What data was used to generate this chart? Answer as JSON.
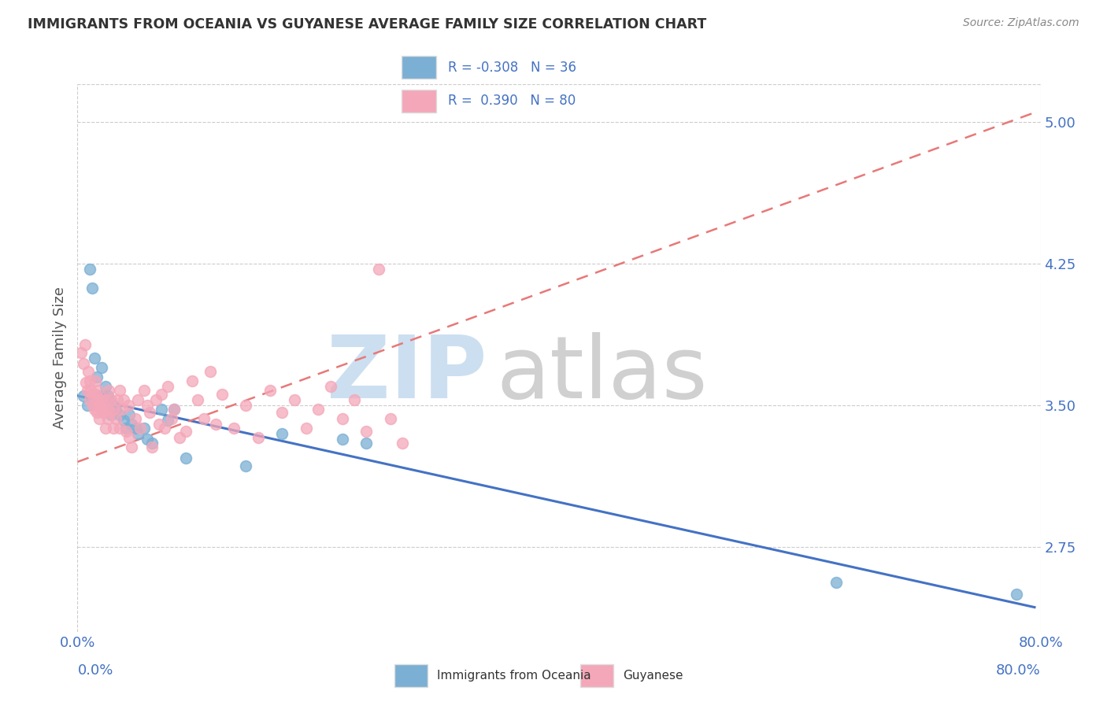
{
  "title": "IMMIGRANTS FROM OCEANIA VS GUYANESE AVERAGE FAMILY SIZE CORRELATION CHART",
  "source": "Source: ZipAtlas.com",
  "ylabel": "Average Family Size",
  "xmin": 0.0,
  "xmax": 0.8,
  "ymin": 2.3,
  "ymax": 5.2,
  "yticks": [
    2.75,
    3.5,
    4.25,
    5.0
  ],
  "xtick_positions": [
    0.0,
    0.1,
    0.2,
    0.3,
    0.4,
    0.5,
    0.6,
    0.7,
    0.8
  ],
  "background_color": "#ffffff",
  "grid_color": "#cccccc",
  "title_color": "#333333",
  "axis_tick_color": "#4472c4",
  "ylabel_color": "#555555",
  "watermark_zip_color": "#ccdff0",
  "watermark_atlas_color": "#d0d0d0",
  "series": [
    {
      "name": "Immigrants from Oceania",
      "R": -0.308,
      "N": 36,
      "color": "#7bafd4",
      "markersize": 10,
      "trendline_color": "#4472c4",
      "trendline_style": "-",
      "trend_x0": 0.0,
      "trend_x1": 0.795,
      "trend_y0": 3.55,
      "trend_y1": 2.43
    },
    {
      "name": "Guyanese",
      "R": 0.39,
      "N": 80,
      "color": "#f4a7b9",
      "markersize": 10,
      "trendline_color": "#e87878",
      "trendline_style": "--",
      "trend_x0": 0.0,
      "trend_x1": 0.795,
      "trend_y0": 3.2,
      "trend_y1": 5.05
    }
  ],
  "scatter_blue": {
    "x": [
      0.005,
      0.008,
      0.01,
      0.012,
      0.014,
      0.016,
      0.018,
      0.018,
      0.02,
      0.022,
      0.023,
      0.025,
      0.027,
      0.028,
      0.03,
      0.032,
      0.035,
      0.038,
      0.04,
      0.043,
      0.045,
      0.048,
      0.05,
      0.055,
      0.058,
      0.062,
      0.07,
      0.075,
      0.08,
      0.09,
      0.14,
      0.17,
      0.22,
      0.24,
      0.63,
      0.78
    ],
    "y": [
      3.55,
      3.5,
      4.22,
      4.12,
      3.75,
      3.65,
      3.55,
      3.5,
      3.7,
      3.55,
      3.6,
      3.55,
      3.52,
      3.45,
      3.5,
      3.48,
      3.45,
      3.42,
      3.38,
      3.45,
      3.4,
      3.38,
      3.35,
      3.38,
      3.32,
      3.3,
      3.48,
      3.42,
      3.48,
      3.22,
      3.18,
      3.35,
      3.32,
      3.3,
      2.56,
      2.5
    ]
  },
  "scatter_pink": {
    "x": [
      0.003,
      0.005,
      0.006,
      0.007,
      0.008,
      0.009,
      0.01,
      0.01,
      0.011,
      0.012,
      0.013,
      0.014,
      0.015,
      0.015,
      0.016,
      0.016,
      0.017,
      0.018,
      0.018,
      0.019,
      0.02,
      0.02,
      0.021,
      0.022,
      0.023,
      0.024,
      0.025,
      0.025,
      0.026,
      0.027,
      0.028,
      0.03,
      0.03,
      0.032,
      0.033,
      0.035,
      0.035,
      0.037,
      0.038,
      0.04,
      0.042,
      0.043,
      0.045,
      0.048,
      0.05,
      0.052,
      0.055,
      0.058,
      0.06,
      0.062,
      0.065,
      0.068,
      0.07,
      0.072,
      0.075,
      0.078,
      0.08,
      0.085,
      0.09,
      0.095,
      0.1,
      0.105,
      0.11,
      0.115,
      0.12,
      0.13,
      0.14,
      0.15,
      0.16,
      0.17,
      0.18,
      0.19,
      0.2,
      0.21,
      0.22,
      0.23,
      0.24,
      0.25,
      0.26,
      0.27
    ],
    "y": [
      3.78,
      3.72,
      3.82,
      3.62,
      3.58,
      3.68,
      3.53,
      3.63,
      3.58,
      3.56,
      3.5,
      3.48,
      3.56,
      3.63,
      3.53,
      3.46,
      3.58,
      3.43,
      3.5,
      3.53,
      3.48,
      3.53,
      3.46,
      3.5,
      3.38,
      3.53,
      3.48,
      3.43,
      3.58,
      3.46,
      3.53,
      3.38,
      3.48,
      3.43,
      3.53,
      3.58,
      3.38,
      3.48,
      3.53,
      3.36,
      3.5,
      3.33,
      3.28,
      3.43,
      3.53,
      3.38,
      3.58,
      3.5,
      3.46,
      3.28,
      3.53,
      3.4,
      3.56,
      3.38,
      3.6,
      3.43,
      3.48,
      3.33,
      3.36,
      3.63,
      3.53,
      3.43,
      3.68,
      3.4,
      3.56,
      3.38,
      3.5,
      3.33,
      3.58,
      3.46,
      3.53,
      3.38,
      3.48,
      3.6,
      3.43,
      3.53,
      3.36,
      4.22,
      3.43,
      3.3
    ]
  }
}
